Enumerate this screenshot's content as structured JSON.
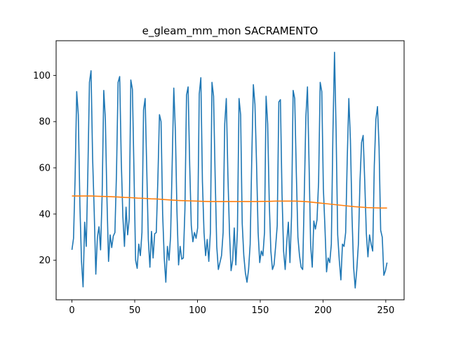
{
  "chart_data": {
    "type": "line",
    "title": "e_gleam_mm_mon SACRAMENTO",
    "xlabel": "",
    "ylabel": "",
    "xlim": [
      -12.6,
      264.6
    ],
    "ylim": [
      2.9,
      115.0
    ],
    "grid": false,
    "legend": "none",
    "x_ticks": [
      0,
      50,
      100,
      150,
      200,
      250
    ],
    "y_ticks": [
      20,
      40,
      60,
      80,
      100
    ],
    "series": [
      {
        "color": "#1f77b4",
        "values": [
          24.5,
          29.5,
          56.0,
          93.0,
          83.0,
          44.0,
          19.5,
          8.5,
          36.5,
          26.0,
          58.0,
          97.0,
          102.0,
          64.0,
          41.0,
          14.0,
          30.0,
          34.5,
          24.5,
          49.0,
          93.5,
          81.0,
          46.5,
          19.5,
          31.0,
          25.5,
          30.5,
          32.0,
          58.0,
          97.0,
          99.5,
          63.0,
          39.0,
          26.0,
          43.0,
          31.0,
          38.0,
          98.0,
          94.0,
          58.0,
          20.0,
          16.5,
          27.0,
          22.0,
          32.0,
          85.0,
          90.0,
          60.0,
          29.0,
          17.0,
          32.5,
          21.0,
          31.5,
          32.0,
          55.0,
          83.0,
          80.0,
          40.0,
          21.0,
          10.5,
          26.0,
          20.0,
          30.5,
          62.0,
          94.5,
          76.0,
          41.0,
          18.0,
          26.0,
          20.5,
          21.0,
          42.0,
          91.5,
          95.0,
          61.0,
          35.0,
          28.0,
          32.0,
          29.5,
          34.0,
          92.0,
          99.0,
          54.0,
          32.0,
          22.0,
          29.0,
          19.5,
          32.0,
          97.0,
          91.0,
          56.0,
          26.0,
          16.0,
          19.0,
          22.0,
          32.0,
          79.0,
          90.0,
          57.0,
          32.0,
          15.5,
          20.0,
          34.0,
          18.0,
          33.0,
          90.0,
          83.0,
          36.0,
          22.0,
          14.5,
          10.5,
          16.0,
          27.0,
          64.0,
          96.0,
          87.5,
          62.0,
          32.0,
          19.0,
          24.0,
          22.0,
          32.0,
          91.0,
          79.0,
          45.0,
          24.0,
          16.0,
          18.0,
          26.0,
          35.0,
          88.5,
          89.5,
          49.0,
          24.0,
          16.0,
          28.0,
          36.5,
          19.0,
          39.0,
          93.5,
          90.0,
          58.0,
          30.0,
          22.0,
          17.0,
          16.0,
          48.0,
          82.0,
          95.0,
          62.0,
          26.5,
          17.0,
          37.0,
          33.5,
          37.5,
          54.0,
          97.0,
          93.0,
          51.0,
          34.0,
          15.0,
          21.0,
          19.0,
          27.0,
          75.0,
          110.0,
          76.0,
          31.0,
          20.0,
          11.5,
          27.0,
          26.0,
          32.0,
          64.0,
          90.0,
          72.0,
          39.0,
          17.0,
          8.0,
          16.0,
          27.0,
          54.0,
          71.0,
          74.0,
          54.0,
          31.5,
          21.5,
          31.0,
          27.0,
          24.0,
          61.0,
          81.0,
          86.5,
          69.0,
          33.0,
          30.0,
          13.5,
          15.5,
          19.0
        ],
        "line_width": 1.6
      },
      {
        "color": "#ff7f0e",
        "values": [
          47.8,
          47.8,
          47.8,
          47.8,
          47.7,
          47.6,
          47.5,
          47.4,
          47.2,
          47.1,
          46.9,
          46.8,
          46.6,
          46.5,
          46.3,
          46.1,
          45.9,
          45.8,
          45.7,
          45.6,
          45.5,
          45.4,
          45.4,
          45.4,
          45.4,
          45.4,
          45.4,
          45.4,
          45.4,
          45.5,
          45.5,
          45.6,
          45.6,
          45.6,
          45.6,
          45.5,
          45.3,
          45.0,
          44.7,
          44.4,
          44.1,
          43.8,
          43.5,
          43.2,
          43.0,
          42.8,
          42.7,
          42.6,
          42.6
        ]
      }
    ]
  }
}
